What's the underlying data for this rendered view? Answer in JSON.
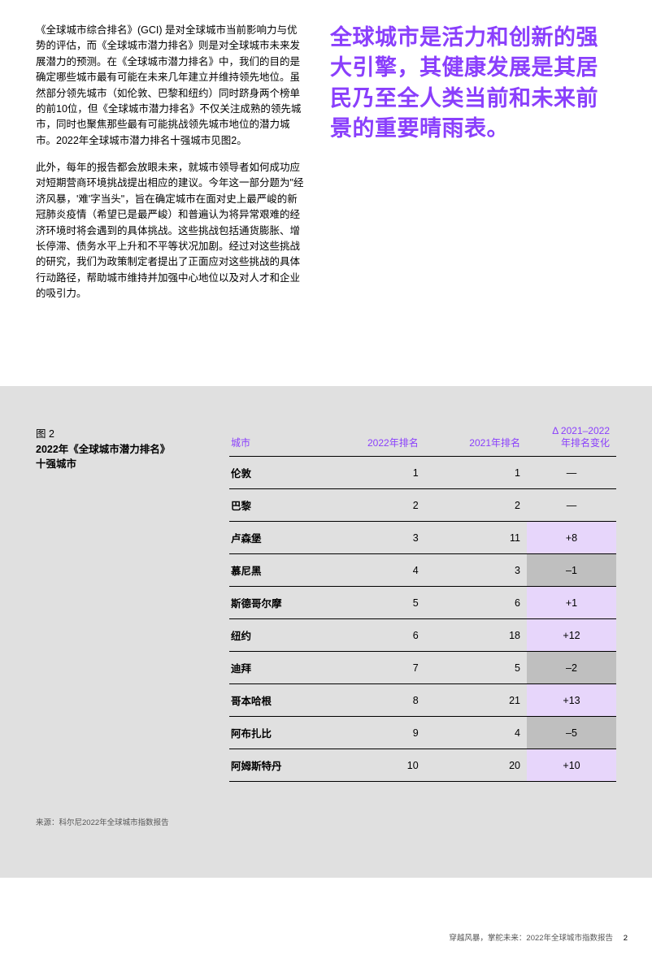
{
  "intro": {
    "para1": "《全球城市综合排名》(GCI) 是对全球城市当前影响力与优势的评估，而《全球城市潜力排名》则是对全球城市未来发展潜力的预测。在《全球城市潜力排名》中，我们的目的是确定哪些城市最有可能在未来几年建立并维持领先地位。虽然部分领先城市（如伦敦、巴黎和纽约）同时跻身两个榜单的前10位，但《全球城市潜力排名》不仅关注成熟的领先城市，同时也聚焦那些最有可能挑战领先城市地位的潜力城市。2022年全球城市潜力排名十强城市见图2。",
    "para2": "此外，每年的报告都会放眼未来，就城市领导者如何成功应对短期营商环境挑战提出相应的建议。今年这一部分题为\"经济风暴，'难'字当头\"，旨在确定城市在面对史上最严峻的新冠肺炎疫情（希望已是最严峻）和普遍认为将异常艰难的经济环境时将会遇到的具体挑战。这些挑战包括通货膨胀、增长停滞、债务水平上升和不平等状况加剧。经过对这些挑战的研究，我们为政策制定者提出了正面应对这些挑战的具体行动路径，帮助城市维持并加强中心地位以及对人才和企业的吸引力。"
  },
  "callout": {
    "text": "全球城市是活力和创新的强大引擎，其健康发展是其居民乃至全人类当前和未来前景的重要晴雨表。",
    "color": "#8a3ffc"
  },
  "figure": {
    "num": "图 2",
    "title_l1": "2022年《全球城市潜力排名》",
    "title_l2": "十强城市",
    "source": "来源：科尔尼2022年全球城市指数报告"
  },
  "table": {
    "headers": {
      "city": "城市",
      "rank2022": "2022年排名",
      "rank2021": "2021年排名",
      "delta": "Δ 2021–2022\n年排名变化"
    },
    "header_color": "#8a3ffc",
    "delta_colors": {
      "pos": "#e7d6fb",
      "neg": "#bfbfbf",
      "none": "transparent"
    },
    "rows": [
      {
        "city": "伦敦",
        "r22": "1",
        "r21": "1",
        "delta": "—",
        "dir": "none"
      },
      {
        "city": "巴黎",
        "r22": "2",
        "r21": "2",
        "delta": "—",
        "dir": "none"
      },
      {
        "city": "卢森堡",
        "r22": "3",
        "r21": "11",
        "delta": "+8",
        "dir": "pos"
      },
      {
        "city": "慕尼黑",
        "r22": "4",
        "r21": "3",
        "delta": "–1",
        "dir": "neg"
      },
      {
        "city": "斯德哥尔摩",
        "r22": "5",
        "r21": "6",
        "delta": "+1",
        "dir": "pos"
      },
      {
        "city": "纽约",
        "r22": "6",
        "r21": "18",
        "delta": "+12",
        "dir": "pos"
      },
      {
        "city": "迪拜",
        "r22": "7",
        "r21": "5",
        "delta": "–2",
        "dir": "neg"
      },
      {
        "city": "哥本哈根",
        "r22": "8",
        "r21": "21",
        "delta": "+13",
        "dir": "pos"
      },
      {
        "city": "阿布扎比",
        "r22": "9",
        "r21": "4",
        "delta": "–5",
        "dir": "neg"
      },
      {
        "city": "阿姆斯特丹",
        "r22": "10",
        "r21": "20",
        "delta": "+10",
        "dir": "pos"
      }
    ]
  },
  "footer": {
    "text": "穿越风暴，掌舵未来：2022年全球城市指数报告",
    "page": "2"
  }
}
